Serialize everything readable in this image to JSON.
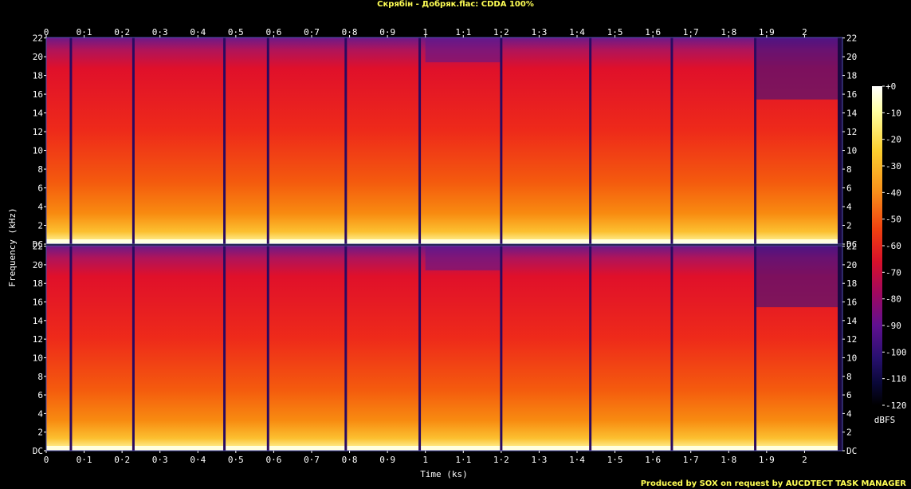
{
  "title": "Скрябін - Добряк.flac: CDDA 100%",
  "footer": "Produced by SOX on request by AUCDTECT TASK MANAGER",
  "chart_data": {
    "type": "heatmap",
    "title": "Скрябін - Добряк.flac: CDDA 100%",
    "xlabel": "Time (ks)",
    "ylabel": "Frequency (kHz)",
    "colorbar_label": "dBFS",
    "xlim": [
      0,
      2.1
    ],
    "ylim": [
      0,
      22.05
    ],
    "channels": 2,
    "x_ticks": [
      "0",
      "0·1",
      "0·2",
      "0·3",
      "0·4",
      "0·5",
      "0·6",
      "0·7",
      "0·8",
      "0·9",
      "1",
      "1·1",
      "1·2",
      "1·3",
      "1·4",
      "1·5",
      "1·6",
      "1·7",
      "1·8",
      "1·9",
      "2"
    ],
    "y_ticks": [
      "DC",
      "2",
      "4",
      "6",
      "8",
      "10",
      "12",
      "14",
      "16",
      "18",
      "20",
      "22"
    ],
    "colorbar_ticks": [
      "+0",
      "-10",
      "-20",
      "-30",
      "-40",
      "-50",
      "-60",
      "-70",
      "-80",
      "-90",
      "-100",
      "-110",
      "-120"
    ],
    "colorbar_range": [
      -120,
      0
    ],
    "track_boundaries_ks": [
      0.065,
      0.23,
      0.47,
      0.585,
      0.79,
      0.985,
      1.2,
      1.435,
      1.65,
      1.87
    ]
  }
}
